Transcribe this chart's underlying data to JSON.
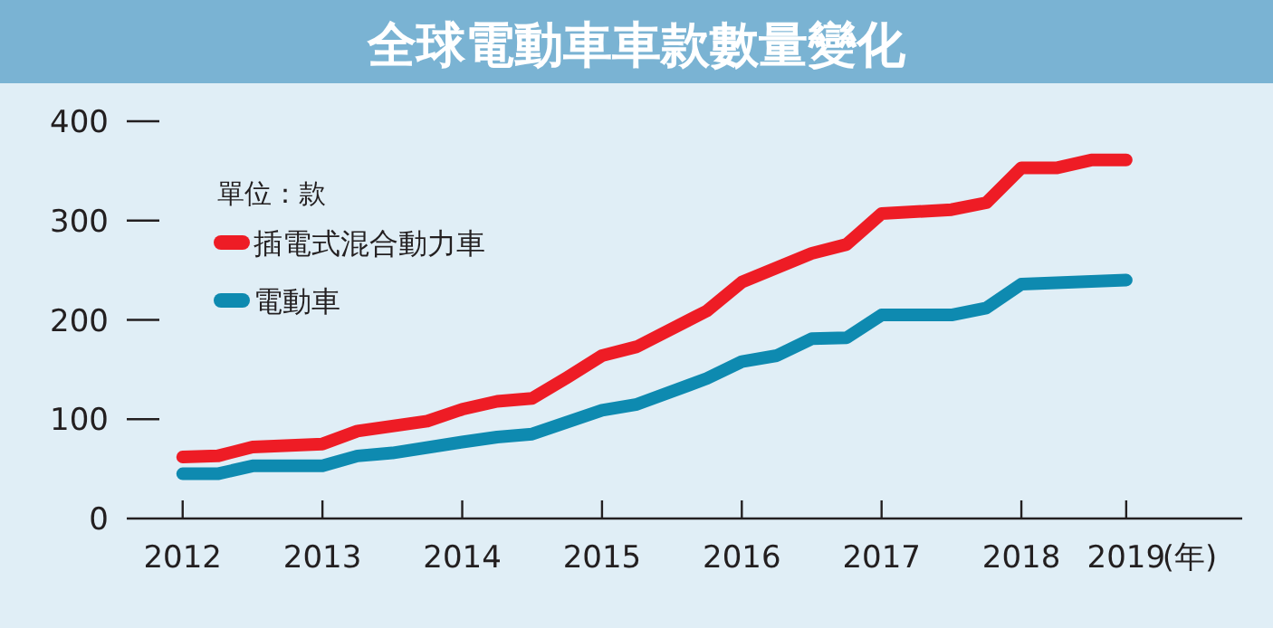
{
  "chart_data": {
    "type": "line",
    "title": "全球電動車車款數量變化",
    "xlabel": "(年)",
    "legend_title": "單位：款",
    "legend": "top left",
    "grid": false,
    "line_style": "solid",
    "marker": "none",
    "xlim": [
      2011.6,
      2019.58
    ],
    "ylim": [
      0,
      400
    ],
    "xticks": [
      2012,
      2013,
      2014,
      2015,
      2016,
      2017,
      2018,
      {
        "value": 2018.75,
        "label": "2019"
      }
    ],
    "yticks": [
      0,
      100,
      200,
      300,
      400
    ],
    "series": [
      {
        "name": "插電式混合動力車",
        "color": "#ee1c25",
        "x": [
          2012,
          2012.25,
          2012.5,
          2013,
          2013.25,
          2013.75,
          2014,
          2014.25,
          2014.5,
          2014.75,
          2015,
          2015.25,
          2015.75,
          2016,
          2016.5,
          2016.75,
          2017,
          2017.5,
          2017.75,
          2018,
          2018.25,
          2018.5,
          2018.75
        ],
        "values": [
          62,
          63,
          72,
          75,
          88,
          98,
          110,
          118,
          121,
          142,
          164,
          173,
          209,
          238,
          267,
          276,
          307,
          311,
          318,
          353,
          353,
          361,
          361
        ]
      },
      {
        "name": "電動車",
        "color": "#0e8ab0",
        "x": [
          2012,
          2012.25,
          2012.5,
          2013,
          2013.25,
          2013.5,
          2014,
          2014.25,
          2014.5,
          2015,
          2015.25,
          2015.75,
          2016,
          2016.25,
          2016.5,
          2016.75,
          2017,
          2017.5,
          2017.75,
          2018,
          2018.75
        ],
        "values": [
          45,
          45,
          53,
          53,
          63,
          66,
          77,
          82,
          85,
          109,
          115,
          141,
          158,
          164,
          181,
          182,
          205,
          205,
          212,
          236,
          240
        ]
      }
    ]
  }
}
